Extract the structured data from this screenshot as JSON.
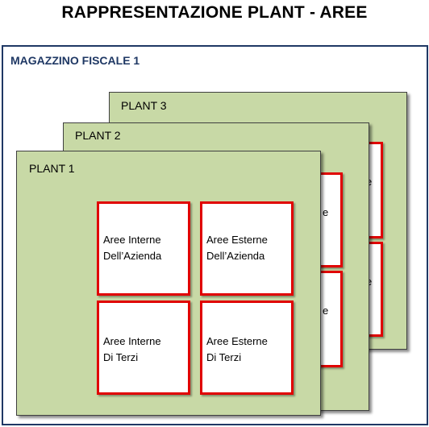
{
  "title": "RAPPRESENTAZIONE PLANT - AREE",
  "warehouse": {
    "label": "MAGAZZINO FISCALE 1"
  },
  "plants": [
    {
      "label": "PLANT 3"
    },
    {
      "label": "PLANT 2"
    },
    {
      "label": "PLANT 1"
    }
  ],
  "areas": {
    "internal_company": {
      "line1": "Aree Interne",
      "line2": "Dell’Azienda"
    },
    "external_company": {
      "line1": "Aree Esterne",
      "line2": "Dell’Azienda"
    },
    "internal_third": {
      "line1": "Aree Interne",
      "line2": "Di Terzi"
    },
    "external_third": {
      "line1": "Aree Esterne",
      "line2": "Di Terzi"
    }
  },
  "peek_letters": [
    "e",
    "e",
    "e",
    "e"
  ],
  "colors": {
    "plant_fill": "#c8d9a6",
    "area_border": "#e00000",
    "warehouse_border": "#1f3864"
  }
}
